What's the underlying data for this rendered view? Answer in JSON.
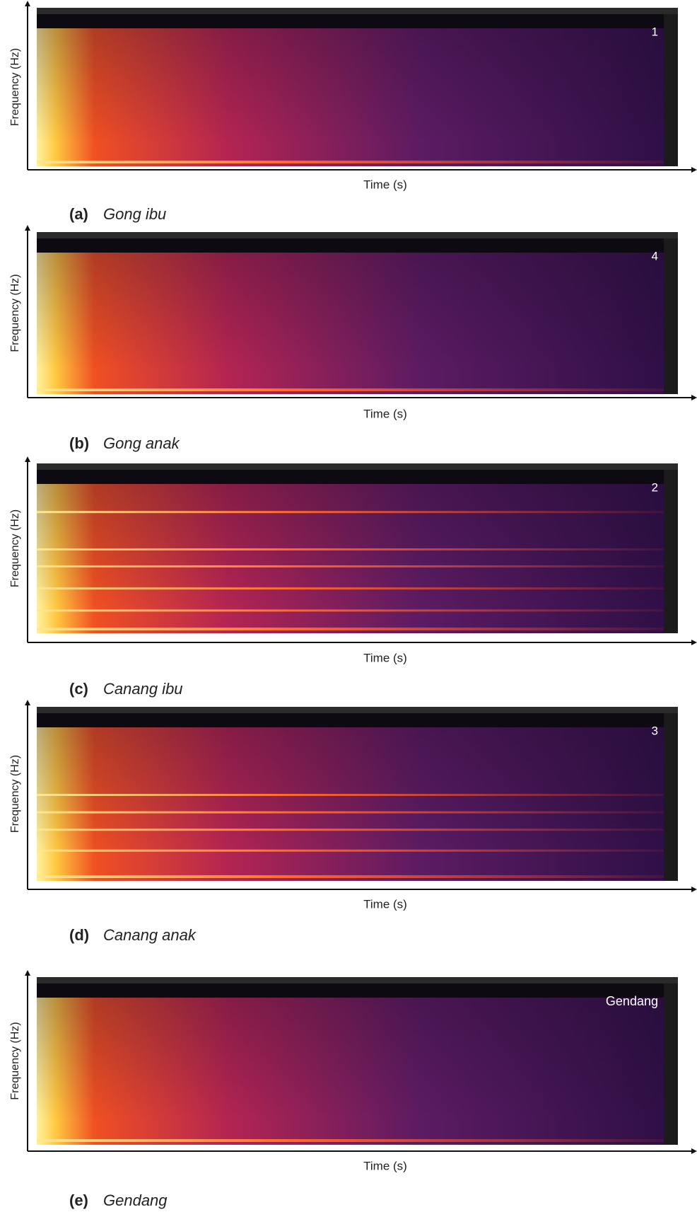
{
  "panels": [
    {
      "y_label": "Frequency (Hz)",
      "x_label": "Time (s)",
      "tag": "1",
      "letter": "(a)",
      "name": "Gong ibu"
    },
    {
      "y_label": "Frequency (Hz)",
      "x_label": "Time (s)",
      "tag": "4",
      "letter": "(b)",
      "name": "Gong anak"
    },
    {
      "y_label": "Frequency (Hz)",
      "x_label": "Time (s)",
      "tag": "2",
      "letter": "(c)",
      "name": "Canang ibu"
    },
    {
      "y_label": "Frequency (Hz)",
      "x_label": "Time (s)",
      "tag": "3",
      "letter": "(d)",
      "name": "Canang anak"
    },
    {
      "y_label": "Frequency (Hz)",
      "x_label": "Time (s)",
      "tag": "Gendang",
      "letter": "(e)",
      "name": "Gendang"
    }
  ]
}
